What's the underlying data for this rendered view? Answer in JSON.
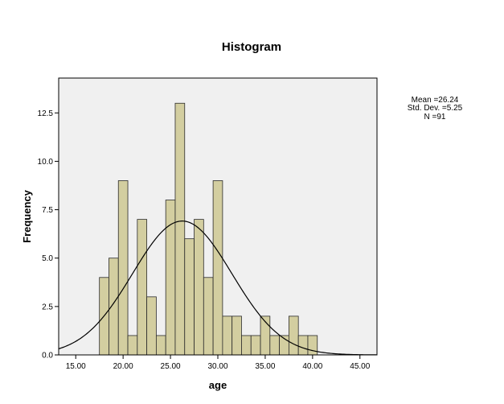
{
  "chart_data": {
    "type": "bar",
    "title": "Histogram",
    "xlabel": "age",
    "ylabel": "Frequency",
    "xlim": [
      13.2,
      46.8
    ],
    "ylim": [
      0,
      14.3
    ],
    "bin_width": 1,
    "bins": [
      {
        "x0": 17.5,
        "x1": 18.5,
        "count": 4
      },
      {
        "x0": 18.5,
        "x1": 19.5,
        "count": 5
      },
      {
        "x0": 19.5,
        "x1": 20.5,
        "count": 9
      },
      {
        "x0": 20.5,
        "x1": 21.5,
        "count": 1
      },
      {
        "x0": 21.5,
        "x1": 22.5,
        "count": 7
      },
      {
        "x0": 22.5,
        "x1": 23.5,
        "count": 3
      },
      {
        "x0": 23.5,
        "x1": 24.5,
        "count": 1
      },
      {
        "x0": 24.5,
        "x1": 25.5,
        "count": 8
      },
      {
        "x0": 25.5,
        "x1": 26.5,
        "count": 13
      },
      {
        "x0": 26.5,
        "x1": 27.5,
        "count": 6
      },
      {
        "x0": 27.5,
        "x1": 28.5,
        "count": 7
      },
      {
        "x0": 28.5,
        "x1": 29.5,
        "count": 4
      },
      {
        "x0": 29.5,
        "x1": 30.5,
        "count": 9
      },
      {
        "x0": 30.5,
        "x1": 31.5,
        "count": 2
      },
      {
        "x0": 31.5,
        "x1": 32.5,
        "count": 2
      },
      {
        "x0": 32.5,
        "x1": 33.5,
        "count": 1
      },
      {
        "x0": 33.5,
        "x1": 34.5,
        "count": 1
      },
      {
        "x0": 34.5,
        "x1": 35.5,
        "count": 2
      },
      {
        "x0": 35.5,
        "x1": 36.5,
        "count": 1
      },
      {
        "x0": 36.5,
        "x1": 37.5,
        "count": 1
      },
      {
        "x0": 37.5,
        "x1": 38.5,
        "count": 2
      },
      {
        "x0": 38.5,
        "x1": 39.5,
        "count": 1
      },
      {
        "x0": 39.5,
        "x1": 40.5,
        "count": 1
      }
    ],
    "x_ticks": [
      {
        "value": 15,
        "label": "15.00"
      },
      {
        "value": 20,
        "label": "20.00"
      },
      {
        "value": 25,
        "label": "25.00"
      },
      {
        "value": 30,
        "label": "30.00"
      },
      {
        "value": 35,
        "label": "35.00"
      },
      {
        "value": 40,
        "label": "40.00"
      },
      {
        "value": 45,
        "label": "45.00"
      }
    ],
    "y_ticks": [
      {
        "value": 0,
        "label": "0.0"
      },
      {
        "value": 2.5,
        "label": "2.5"
      },
      {
        "value": 5,
        "label": "5.0"
      },
      {
        "value": 7.5,
        "label": "7.5"
      },
      {
        "value": 10,
        "label": "10.0"
      },
      {
        "value": 12.5,
        "label": "12.5"
      }
    ],
    "normal_curve": {
      "mean": 26.24,
      "std_dev": 5.25,
      "n": 91,
      "color": "#000000"
    },
    "stats": {
      "mean_label": "Mean =26.24",
      "std_label": "Std. Dev. =5.25",
      "n_label": "N =91"
    },
    "grid": false,
    "colors": {
      "bar_fill": "#d3cea0",
      "bar_stroke": "#2b2b2b",
      "plot_background": "#f0f0f0"
    }
  }
}
